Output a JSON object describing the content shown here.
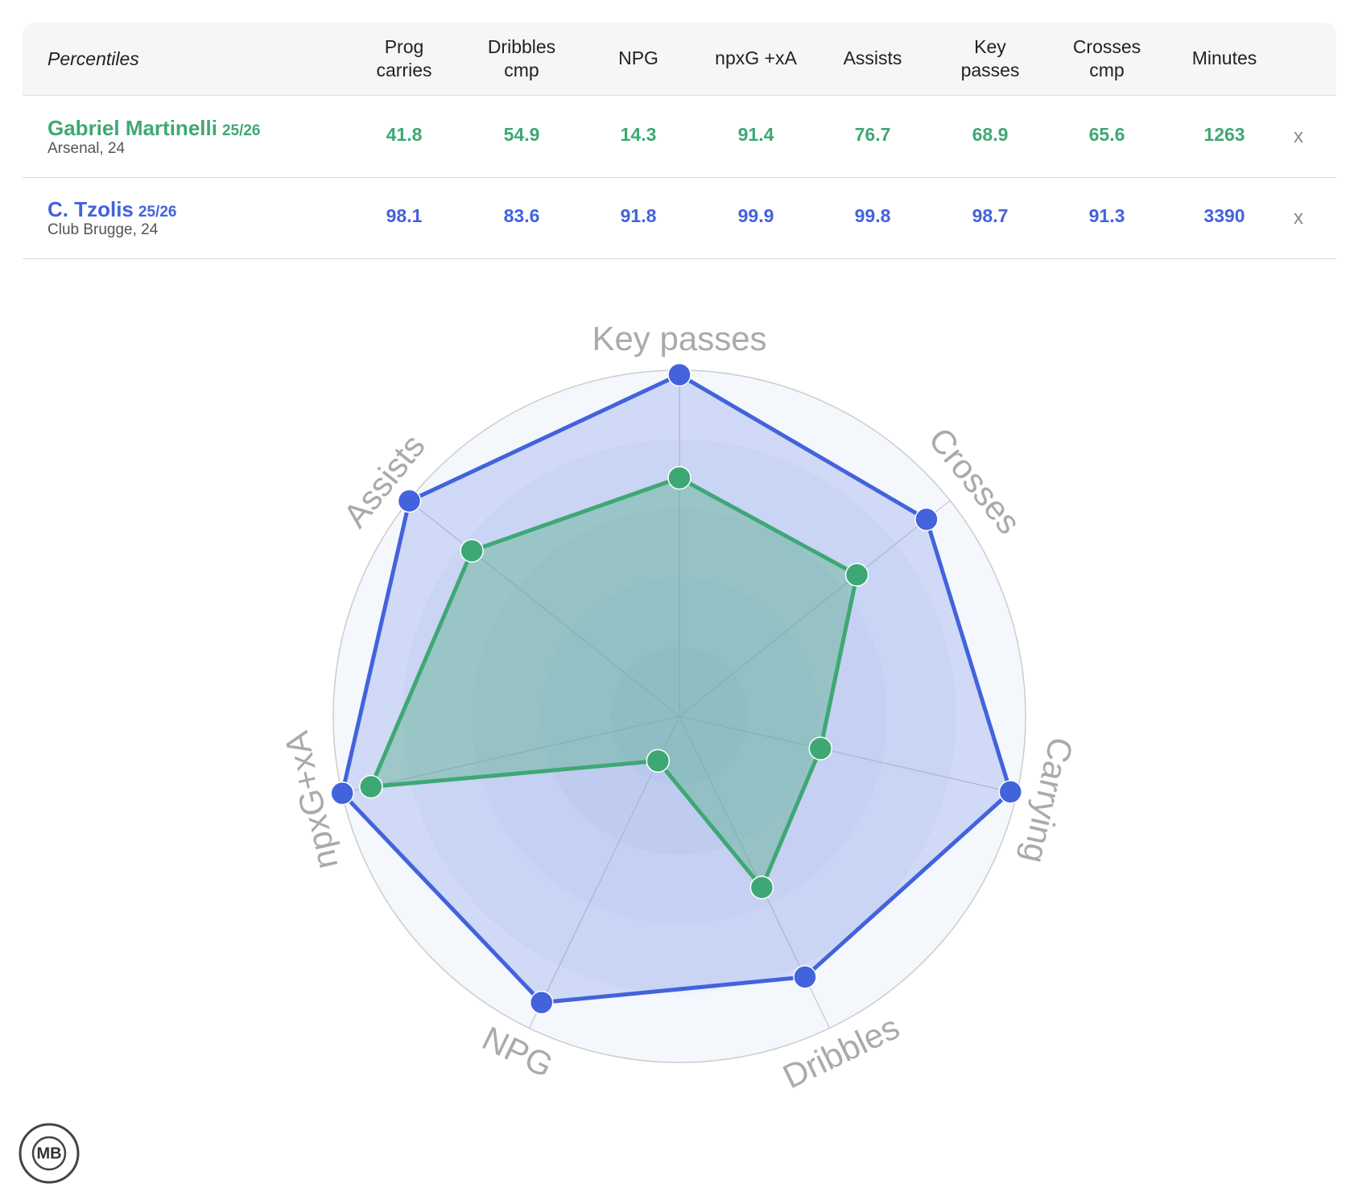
{
  "table": {
    "header_label": "Percentiles",
    "columns": [
      "Prog carries",
      "Dribbles cmp",
      "NPG",
      "npxG +xA",
      "Assists",
      "Key passes",
      "Crosses cmp",
      "Minutes"
    ],
    "rows": [
      {
        "season": "25/26",
        "info": "Arsenal, 24",
        "minutes": 1263,
        "remove": "x"
      },
      {
        "season": "25/26",
        "info": "Club Brugge, 24",
        "minutes": 3390,
        "remove": "x"
      }
    ]
  },
  "chart_data": {
    "type": "radar",
    "categories": [
      "Key passes",
      "Crosses",
      "Carrying",
      "Dribbles",
      "NPG",
      "npxG+xA",
      "Assists"
    ],
    "rlim": [
      0,
      100
    ],
    "series": [
      {
        "name": "Gabriel Martinelli",
        "color": "#3ea874",
        "values": [
          68.9,
          65.6,
          41.8,
          54.9,
          14.3,
          91.4,
          76.7
        ]
      },
      {
        "name": "C. Tzolis",
        "color": "#4263dc",
        "values": [
          98.7,
          91.3,
          98.1,
          83.6,
          91.8,
          99.9,
          99.8
        ]
      }
    ]
  },
  "logo": "MB"
}
